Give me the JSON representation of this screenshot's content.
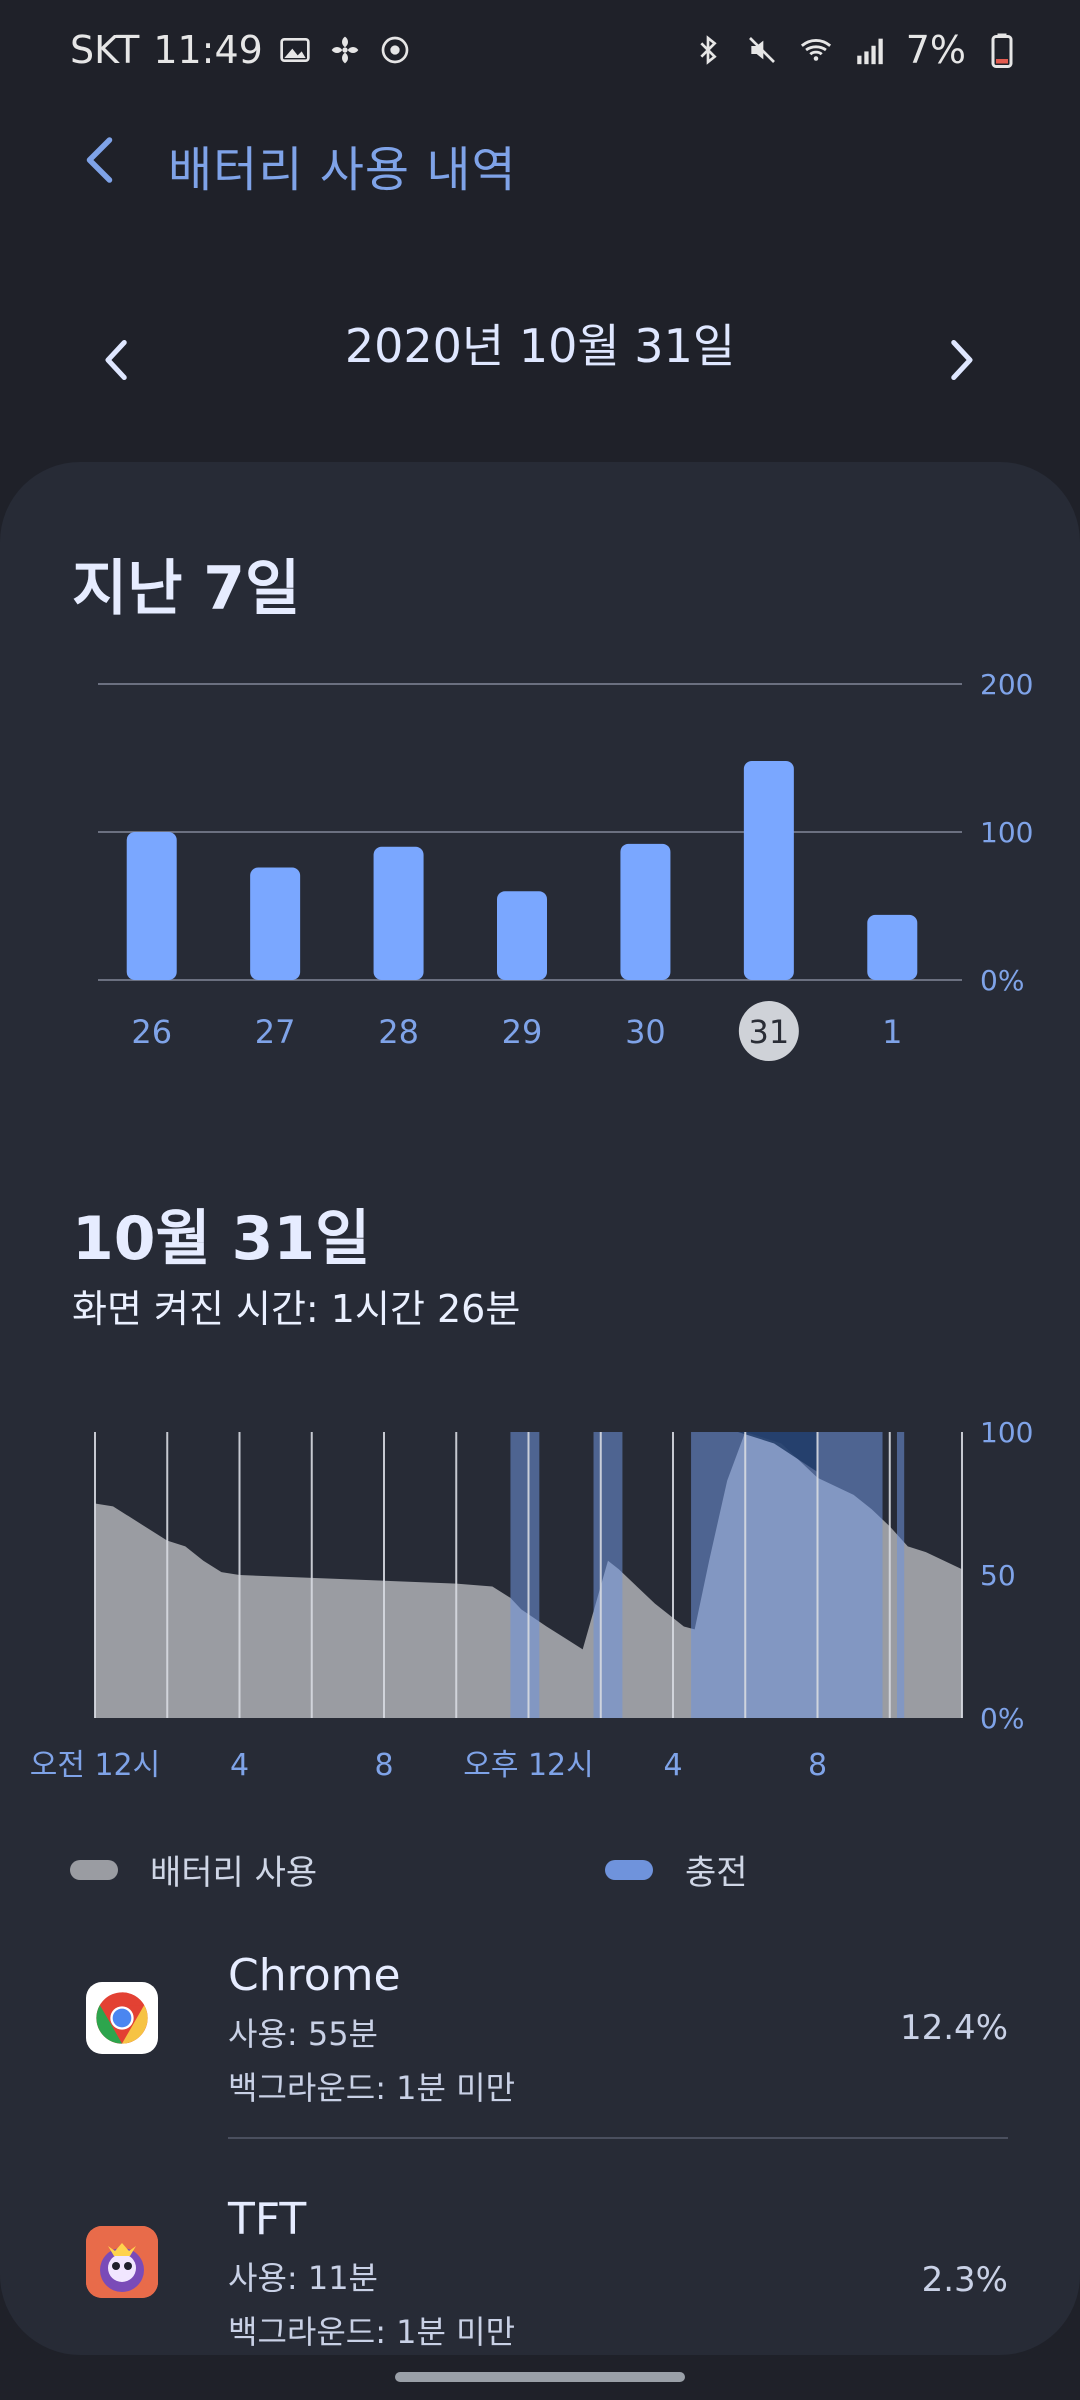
{
  "status_bar": {
    "carrier": "SKT",
    "time": "11:49",
    "battery": "7%",
    "icons_left": [
      "image-icon",
      "fan-icon",
      "sync-icon"
    ],
    "icons_right": [
      "bluetooth-icon",
      "mute-icon",
      "wifi-icon",
      "signal-icon",
      "battery-low-icon"
    ]
  },
  "header": {
    "title": "배터리 사용 내역"
  },
  "date_nav": {
    "date": "2020년 10월 31일"
  },
  "weekly": {
    "title": "지난 7일",
    "y_ticks": [
      "200",
      "100",
      "0%"
    ]
  },
  "day": {
    "title": "10월 31일",
    "screen_time": "화면 켜진 시간: 1시간 26분",
    "y_ticks": [
      "100",
      "50",
      "0%"
    ],
    "x_ticks": [
      "오전 12시",
      "4",
      "8",
      "오후 12시",
      "4",
      "8"
    ]
  },
  "legend": {
    "usage": "배터리 사용",
    "charging": "충전"
  },
  "apps": [
    {
      "name": "Chrome",
      "usage": "사용: 55분",
      "background": "백그라운드: 1분 미만",
      "percent": "12.4%"
    },
    {
      "name": "TFT",
      "usage": "사용: 11분",
      "background": "백그라운드: 1분 미만",
      "percent": "2.3%"
    }
  ],
  "colors": {
    "background": "#1f2129",
    "card": "#272b36",
    "accent": "#7fa3e8",
    "bar": "#7aa7ff",
    "usage_gray": "#9a9ca2",
    "charging_blue": "#6f93dc",
    "charging_dark": "#1f3a66"
  },
  "chart_data": [
    {
      "type": "bar",
      "title": "지난 7일",
      "categories": [
        "26",
        "27",
        "28",
        "29",
        "30",
        "31",
        "1"
      ],
      "values": [
        100,
        76,
        90,
        60,
        92,
        148,
        44
      ],
      "ylim": [
        0,
        200
      ],
      "selected": "31",
      "grid": true
    },
    {
      "type": "area",
      "title": "10월 31일",
      "x": [
        0,
        0.5,
        1,
        2,
        2.5,
        3,
        3.5,
        4,
        6,
        8,
        10,
        11,
        11.5,
        11.8,
        12.5,
        13,
        13.5,
        14.2,
        14.5,
        15,
        15.5,
        16,
        16.3,
        16.6,
        17,
        17.5,
        18,
        19,
        19.5,
        20,
        21,
        21.5,
        22,
        22.5,
        23,
        24
      ],
      "series": [
        {
          "name": "배터리 사용",
          "values": [
            75,
            74,
            70,
            62,
            60,
            55,
            51,
            50,
            49,
            48,
            47,
            46,
            42,
            38,
            32,
            28,
            24,
            55,
            52,
            46,
            40,
            35,
            32,
            31,
            55,
            83,
            100,
            96,
            90,
            84,
            78,
            73,
            67,
            60,
            58,
            52
          ]
        }
      ],
      "charging_windows": [
        [
          11.5,
          12.3
        ],
        [
          13.8,
          14.6
        ],
        [
          16.5,
          21.8
        ],
        [
          22.2,
          22.4
        ]
      ],
      "ylim": [
        0,
        100
      ]
    }
  ]
}
